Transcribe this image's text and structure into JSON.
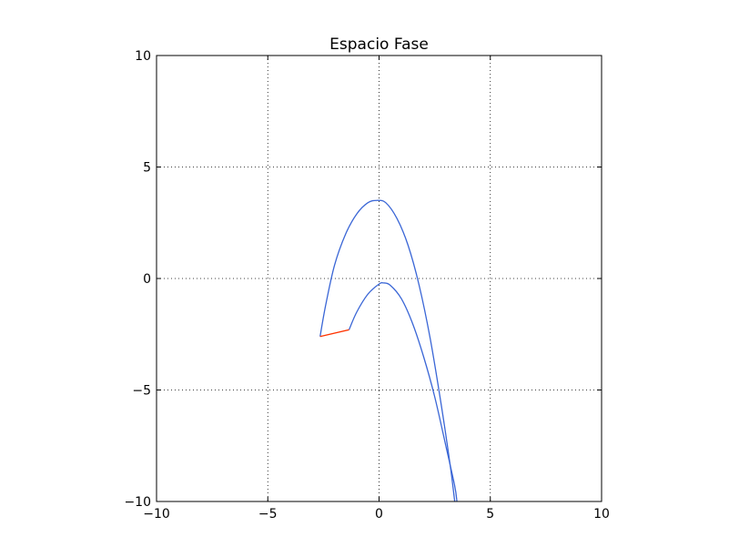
{
  "chart_data": {
    "type": "line",
    "title": "Espacio Fase",
    "xlabel": "",
    "ylabel": "",
    "xlim": [
      -10,
      10
    ],
    "ylim": [
      -10,
      10
    ],
    "xticks": [
      -10,
      -5,
      0,
      5,
      10
    ],
    "yticks": [
      -10,
      -5,
      0,
      5,
      10
    ],
    "xtick_labels": [
      "−10",
      "−5",
      "0",
      "5",
      "10"
    ],
    "ytick_labels": [
      "−10",
      "−5",
      "0",
      "5",
      "10"
    ],
    "grid": true,
    "grid_style": "dotted",
    "series": [
      {
        "color": "#3a66d6",
        "x": [
          -2.65,
          -2.4,
          -2.0,
          -1.5,
          -1.0,
          -0.5,
          -0.1,
          0.3,
          0.8,
          1.3,
          1.8,
          2.3,
          2.8,
          3.2,
          3.4
        ],
        "y": [
          -2.6,
          -1.2,
          0.6,
          2.0,
          2.9,
          3.4,
          3.5,
          3.4,
          2.7,
          1.5,
          -0.3,
          -2.7,
          -5.7,
          -8.4,
          -10.0
        ]
      },
      {
        "color": "#3a66d6",
        "x": [
          -1.35,
          -1.0,
          -0.5,
          0.0,
          0.2,
          0.5,
          1.0,
          1.5,
          2.0,
          2.5,
          3.0,
          3.4,
          3.5
        ],
        "y": [
          -2.3,
          -1.5,
          -0.7,
          -0.25,
          -0.2,
          -0.3,
          -0.9,
          -2.0,
          -3.5,
          -5.3,
          -7.5,
          -9.3,
          -10.0
        ]
      },
      {
        "color": "#ff3300",
        "x": [
          -2.65,
          -1.35
        ],
        "y": [
          -2.6,
          -2.3
        ]
      }
    ]
  }
}
